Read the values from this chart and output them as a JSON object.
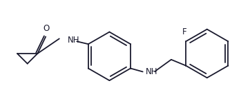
{
  "background_color": "#ffffff",
  "line_color": "#1a1a2e",
  "label_F": "F",
  "label_O": "O",
  "label_NH1": "NH",
  "label_NH2": "NH",
  "figsize": [
    3.62,
    1.5
  ],
  "dpi": 100
}
